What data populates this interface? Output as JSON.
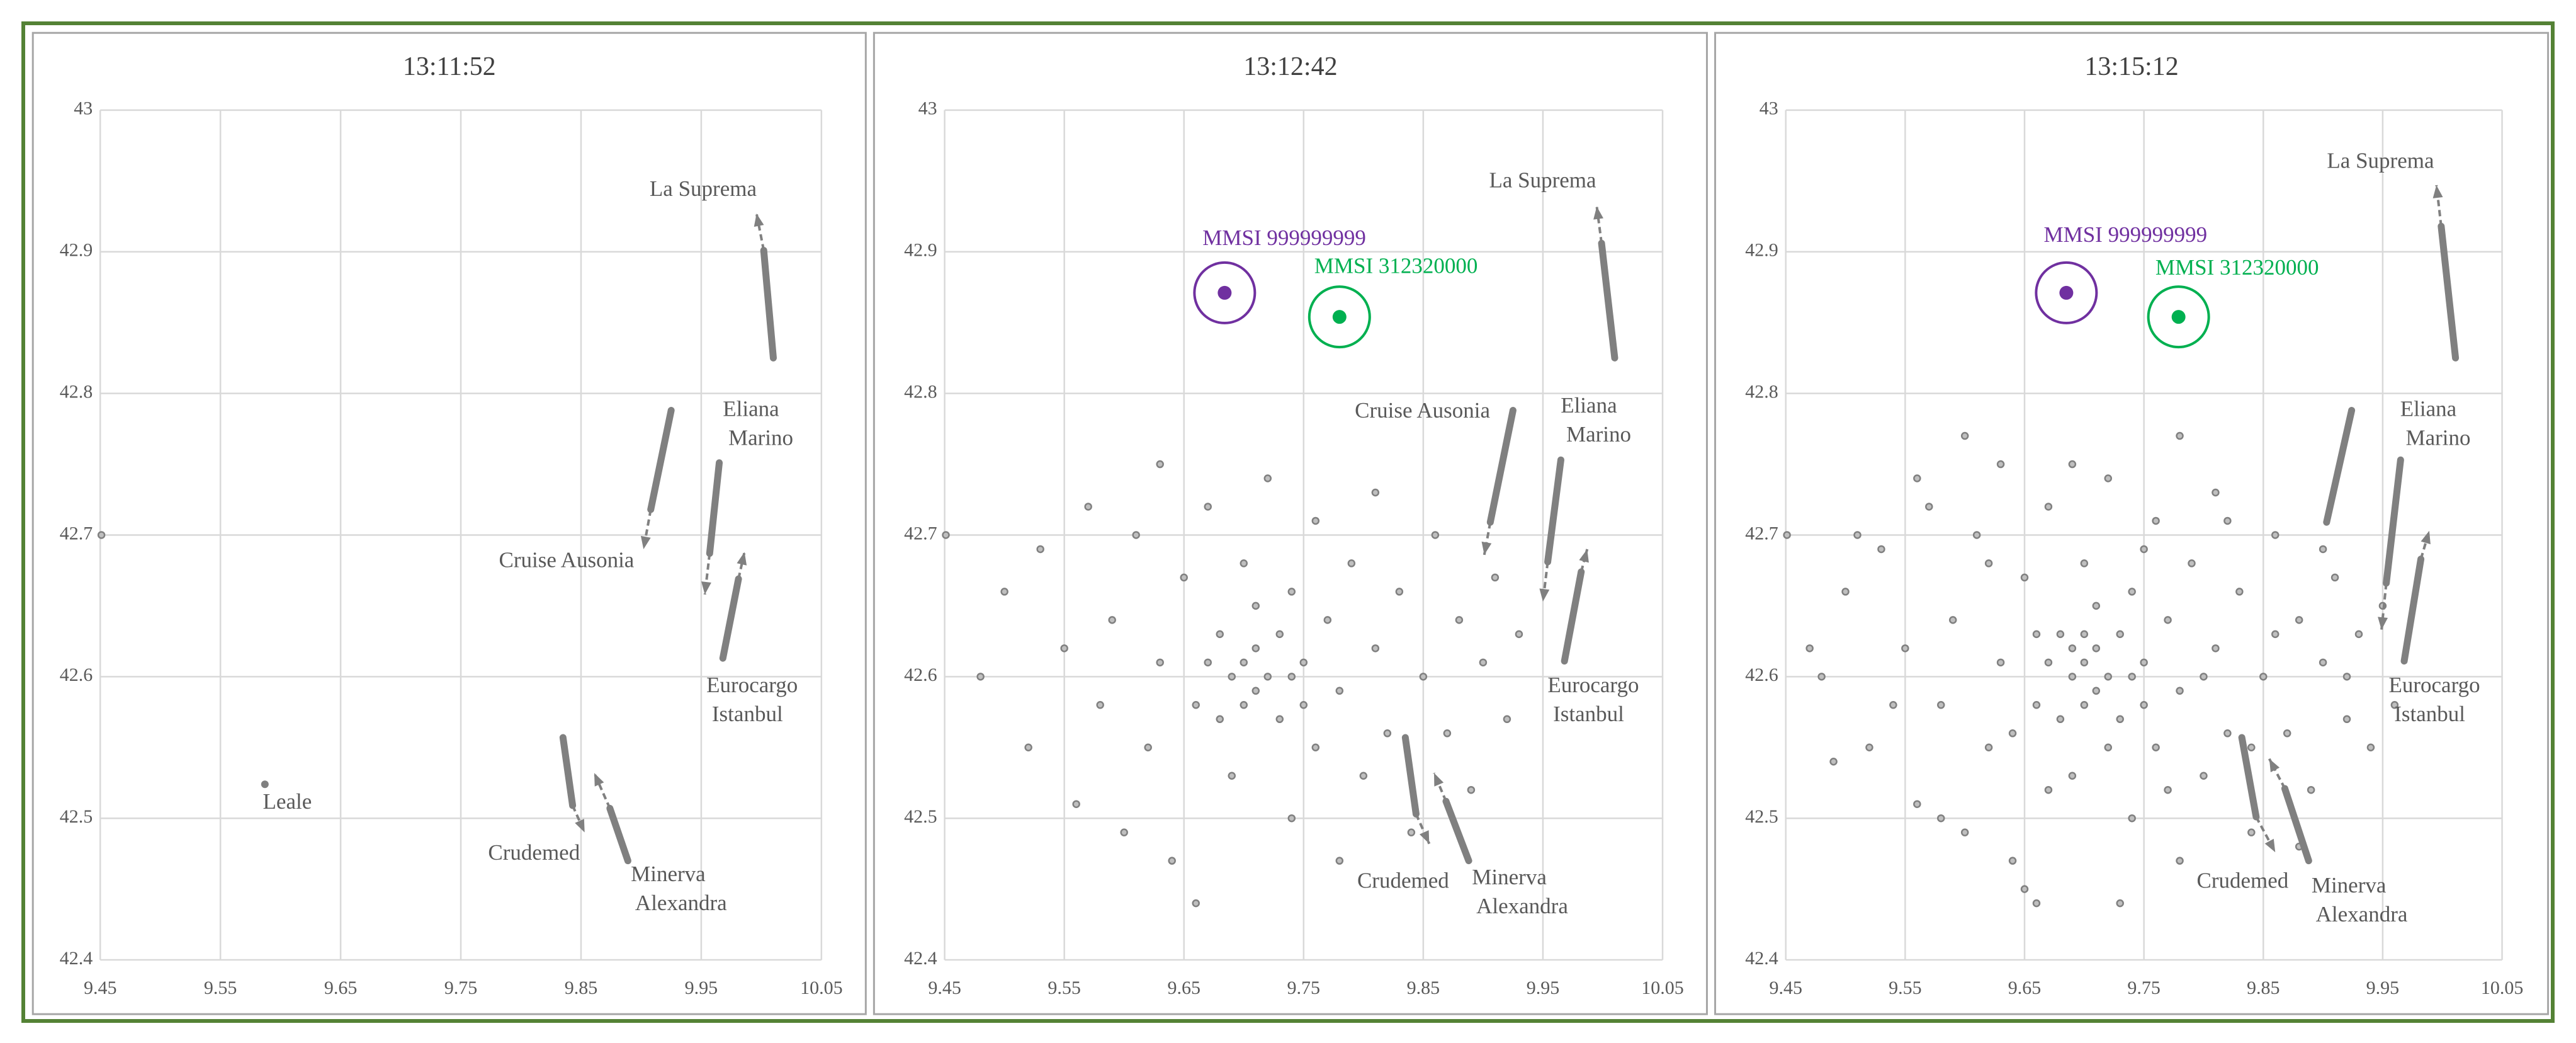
{
  "chart_data": [
    {
      "type": "scatter",
      "title": "13:11:52",
      "xlim": [
        9.45,
        10.05
      ],
      "ylim": [
        42.4,
        43
      ],
      "xticks": [
        9.45,
        9.55,
        9.65,
        9.75,
        9.85,
        9.95,
        10.05
      ],
      "yticks": [
        42.4,
        42.5,
        42.6,
        42.7,
        42.8,
        42.9,
        43
      ],
      "grid": true,
      "series": [
        {
          "color": "#808080",
          "x": [
            9.451
          ],
          "y": [
            42.7
          ]
        }
      ],
      "tracks": [
        {
          "name": "La Suprema",
          "color": "#808080",
          "x": [
            10.01,
            10.002
          ],
          "y": [
            42.825,
            42.901
          ],
          "arrow_x": 9.996,
          "arrow_y": 42.927
        },
        {
          "name": "Eliana Marino",
          "color": "#808080",
          "x": [
            9.965,
            9.957
          ],
          "y": [
            42.751,
            42.687
          ],
          "arrow_x": 9.953,
          "arrow_y": 42.658
        },
        {
          "name": "Cruise Ausonia",
          "color": "#808080",
          "x": [
            9.925,
            9.908
          ],
          "y": [
            42.788,
            42.718
          ],
          "arrow_x": 9.902,
          "arrow_y": 42.69
        },
        {
          "name": "Eurocargo Istanbul",
          "color": "#808080",
          "x": [
            9.968,
            9.981
          ],
          "y": [
            42.613,
            42.669
          ],
          "arrow_x": 9.986,
          "arrow_y": 42.688
        },
        {
          "name": "Crudemed",
          "color": "#808080",
          "x": [
            9.835,
            9.843
          ],
          "y": [
            42.557,
            42.509
          ],
          "arrow_x": 9.853,
          "arrow_y": 42.49
        },
        {
          "name": "Minerva Alexandra",
          "color": "#808080",
          "x": [
            9.889,
            9.874
          ],
          "y": [
            42.47,
            42.507
          ],
          "arrow_x": 9.861,
          "arrow_y": 42.532
        },
        {
          "name": "Leale",
          "color": "#808080",
          "x": [
            9.587
          ],
          "y": [
            42.524
          ]
        }
      ],
      "markers": []
    },
    {
      "type": "scatter",
      "title": "13:12:42",
      "xlim": [
        9.45,
        10.05
      ],
      "ylim": [
        42.4,
        43
      ],
      "xticks": [
        9.45,
        9.55,
        9.65,
        9.75,
        9.85,
        9.95,
        10.05
      ],
      "yticks": [
        42.4,
        42.5,
        42.6,
        42.7,
        42.8,
        42.9,
        43
      ],
      "grid": true,
      "series": [
        {
          "color": "#808080",
          "x": [
            9.451,
            9.48,
            9.5,
            9.52,
            9.53,
            9.55,
            9.56,
            9.57,
            9.58,
            9.59,
            9.6,
            9.61,
            9.62,
            9.63,
            9.63,
            9.64,
            9.65,
            9.66,
            9.66,
            9.67,
            9.68,
            9.69,
            9.69,
            9.7,
            9.7,
            9.71,
            9.71,
            9.72,
            9.72,
            9.73,
            9.73,
            9.74,
            9.74,
            9.75,
            9.76,
            9.76,
            9.77,
            9.78,
            9.78,
            9.79,
            9.8,
            9.81,
            9.81,
            9.82,
            9.83,
            9.84,
            9.85,
            9.86,
            9.87,
            9.88,
            9.89,
            9.9,
            9.91,
            9.92,
            9.93,
            9.67,
            9.7,
            9.74,
            9.68,
            9.75,
            9.71
          ],
          "y": [
            42.7,
            42.6,
            42.66,
            42.55,
            42.69,
            42.62,
            42.51,
            42.72,
            42.58,
            42.64,
            42.49,
            42.7,
            42.55,
            42.75,
            42.61,
            42.47,
            42.67,
            42.58,
            42.44,
            42.72,
            42.63,
            42.53,
            42.6,
            42.61,
            42.68,
            42.59,
            42.62,
            42.6,
            42.74,
            42.57,
            42.63,
            42.5,
            42.66,
            42.61,
            42.55,
            42.71,
            42.64,
            42.47,
            42.59,
            42.68,
            42.53,
            42.62,
            42.73,
            42.56,
            42.66,
            42.49,
            42.6,
            42.7,
            42.56,
            42.64,
            42.52,
            42.61,
            42.67,
            42.57,
            42.63,
            42.61,
            42.58,
            42.6,
            42.57,
            42.58,
            42.65
          ]
        }
      ],
      "tracks": [
        {
          "name": "La Suprema",
          "color": "#808080",
          "x": [
            10.01,
            9.999
          ],
          "y": [
            42.825,
            42.906
          ],
          "arrow_x": 9.995,
          "arrow_y": 42.932
        },
        {
          "name": "Eliana Marino",
          "color": "#808080",
          "x": [
            9.965,
            9.954
          ],
          "y": [
            42.753,
            42.681
          ],
          "arrow_x": 9.95,
          "arrow_y": 42.653
        },
        {
          "name": "Cruise Ausonia",
          "color": "#808080",
          "x": [
            9.925,
            9.906
          ],
          "y": [
            42.788,
            42.709
          ],
          "arrow_x": 9.901,
          "arrow_y": 42.686
        },
        {
          "name": "Eurocargo Istanbul",
          "color": "#808080",
          "x": [
            9.968,
            9.982
          ],
          "y": [
            42.611,
            42.674
          ],
          "arrow_x": 9.987,
          "arrow_y": 42.69
        },
        {
          "name": "Crudemed",
          "color": "#808080",
          "x": [
            9.835,
            9.844
          ],
          "y": [
            42.557,
            42.503
          ],
          "arrow_x": 9.855,
          "arrow_y": 42.482
        },
        {
          "name": "Minerva Alexandra",
          "color": "#808080",
          "x": [
            9.888,
            9.869
          ],
          "y": [
            42.47,
            42.512
          ],
          "arrow_x": 9.859,
          "arrow_y": 42.532
        }
      ],
      "markers": [
        {
          "name": "MMSI 999999999",
          "color": "#7030a0",
          "x": 9.684,
          "y": 42.871
        },
        {
          "name": "MMSI 312320000",
          "color": "#00b050",
          "x": 9.78,
          "y": 42.854
        }
      ]
    },
    {
      "type": "scatter",
      "title": "13:15:12",
      "xlim": [
        9.45,
        10.05
      ],
      "ylim": [
        42.4,
        43
      ],
      "xticks": [
        9.45,
        9.55,
        9.65,
        9.75,
        9.85,
        9.95,
        10.05
      ],
      "yticks": [
        42.4,
        42.5,
        42.6,
        42.7,
        42.8,
        42.9,
        43
      ],
      "grid": true,
      "series": [
        {
          "color": "#808080",
          "x": [
            9.451,
            9.48,
            9.5,
            9.52,
            9.53,
            9.55,
            9.56,
            9.57,
            9.58,
            9.59,
            9.6,
            9.61,
            9.62,
            9.63,
            9.63,
            9.64,
            9.65,
            9.66,
            9.66,
            9.67,
            9.68,
            9.69,
            9.69,
            9.7,
            9.7,
            9.71,
            9.71,
            9.72,
            9.72,
            9.73,
            9.73,
            9.74,
            9.74,
            9.75,
            9.76,
            9.76,
            9.77,
            9.78,
            9.78,
            9.79,
            9.8,
            9.81,
            9.81,
            9.82,
            9.83,
            9.84,
            9.85,
            9.86,
            9.87,
            9.88,
            9.89,
            9.9,
            9.91,
            9.92,
            9.93,
            9.67,
            9.7,
            9.74,
            9.68,
            9.75,
            9.71,
            9.47,
            9.49,
            9.51,
            9.54,
            9.56,
            9.58,
            9.6,
            9.62,
            9.64,
            9.65,
            9.66,
            9.67,
            9.69,
            9.7,
            9.72,
            9.73,
            9.75,
            9.77,
            9.78,
            9.8,
            9.82,
            9.84,
            9.86,
            9.88,
            9.9,
            9.92,
            9.94,
            9.95,
            9.96,
            9.69
          ],
          "y": [
            42.7,
            42.6,
            42.66,
            42.55,
            42.69,
            42.62,
            42.51,
            42.72,
            42.58,
            42.64,
            42.49,
            42.7,
            42.55,
            42.75,
            42.61,
            42.47,
            42.67,
            42.58,
            42.44,
            42.72,
            42.63,
            42.53,
            42.6,
            42.61,
            42.68,
            42.59,
            42.62,
            42.6,
            42.74,
            42.57,
            42.63,
            42.5,
            42.66,
            42.61,
            42.55,
            42.71,
            42.64,
            42.47,
            42.59,
            42.68,
            42.53,
            42.62,
            42.73,
            42.56,
            42.66,
            42.49,
            42.6,
            42.7,
            42.56,
            42.64,
            42.52,
            42.61,
            42.67,
            42.57,
            42.63,
            42.61,
            42.58,
            42.6,
            42.57,
            42.58,
            42.65,
            42.62,
            42.54,
            42.7,
            42.58,
            42.74,
            42.5,
            42.77,
            42.68,
            42.56,
            42.45,
            42.63,
            42.52,
            42.75,
            42.63,
            42.55,
            42.44,
            42.69,
            42.52,
            42.77,
            42.6,
            42.71,
            42.55,
            42.63,
            42.48,
            42.69,
            42.6,
            42.55,
            42.65,
            42.58,
            42.62
          ]
        }
      ],
      "tracks": [
        {
          "name": "La Suprema",
          "color": "#808080",
          "x": [
            10.011,
            9.999
          ],
          "y": [
            42.825,
            42.918
          ],
          "arrow_x": 9.995,
          "arrow_y": 42.947
        },
        {
          "name": "Eliana Marino",
          "color": "#808080",
          "x": [
            9.965,
            9.953
          ],
          "y": [
            42.753,
            42.666
          ],
          "arrow_x": 9.949,
          "arrow_y": 42.633
        },
        {
          "color": "#808080",
          "x": [
            9.924,
            9.903
          ],
          "y": [
            42.788,
            42.709
          ]
        },
        {
          "name": "Eurocargo Istanbul",
          "color": "#808080",
          "x": [
            9.968,
            9.982
          ],
          "y": [
            42.611,
            42.683
          ],
          "arrow_x": 9.989,
          "arrow_y": 42.703
        },
        {
          "name": "Crudemed",
          "color": "#808080",
          "x": [
            9.832,
            9.844
          ],
          "y": [
            42.557,
            42.501
          ],
          "arrow_x": 9.86,
          "arrow_y": 42.476
        },
        {
          "name": "Minerva Alexandra",
          "color": "#808080",
          "x": [
            9.888,
            9.868
          ],
          "y": [
            42.47,
            42.521
          ],
          "arrow_x": 9.855,
          "arrow_y": 42.542
        }
      ],
      "markers": [
        {
          "name": "MMSI 999999999",
          "color": "#7030a0",
          "x": 9.685,
          "y": 42.871
        },
        {
          "name": "MMSI 312320000",
          "color": "#00b050",
          "x": 9.779,
          "y": 42.854
        }
      ]
    }
  ]
}
